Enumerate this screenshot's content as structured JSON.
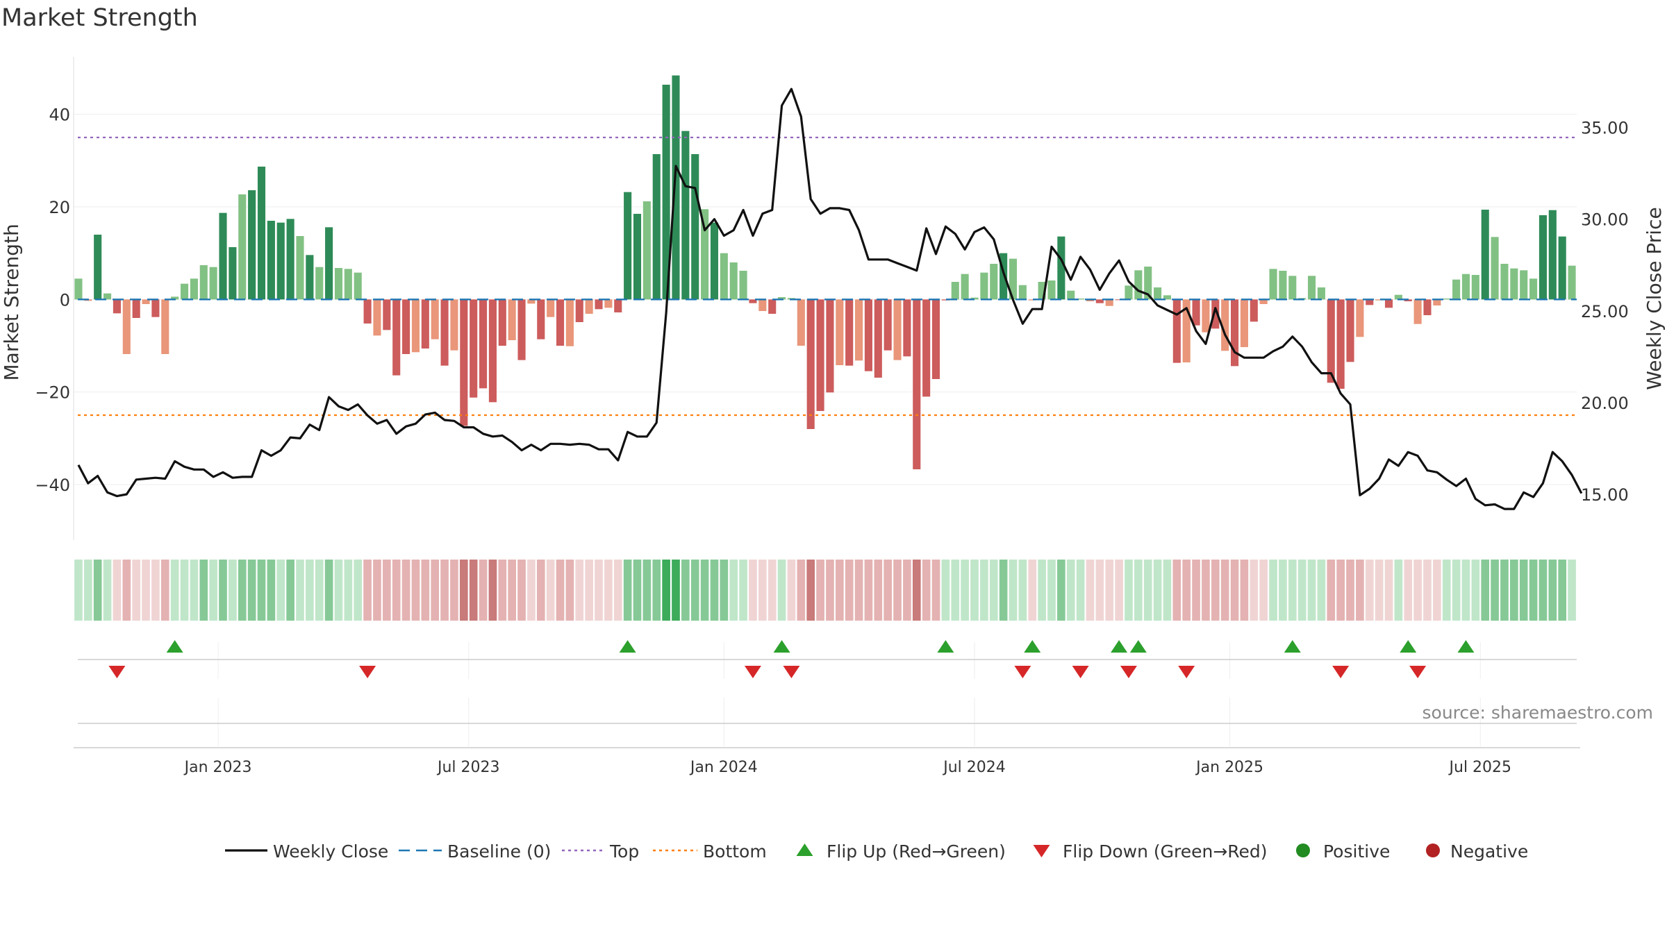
{
  "title": "Market Strength",
  "source": "source: sharemaestro.com",
  "chart_data": {
    "type": "bar",
    "ylabel": "Market Strength",
    "y2label": "Weekly Close Price",
    "ylim": [
      -52,
      53
    ],
    "y2lim": [
      12.5,
      39.0
    ],
    "yticks": [
      "40",
      "20",
      "0",
      "−20",
      "−40"
    ],
    "yticks_values": [
      40,
      20,
      0,
      -20,
      -40
    ],
    "y2ticks": [
      "35.00",
      "30.00",
      "25.00",
      "20.00",
      "15.00"
    ],
    "y2ticks_values": [
      35,
      30,
      25,
      20,
      15
    ],
    "xticks": [
      "Jan 2023",
      "Jul 2023",
      "Jan 2024",
      "Jul 2024",
      "Jan 2025",
      "Jul 2025"
    ],
    "xticks_index": [
      15,
      41,
      67.5,
      93.5,
      120,
      146
    ],
    "top_line": 35,
    "bottom_line": -25,
    "strength": [
      4.5,
      -0.3,
      14,
      1.3,
      -3,
      -11.8,
      -4,
      -1,
      -3.8,
      -11.8,
      0.6,
      3.4,
      4.5,
      7.4,
      7,
      18.7,
      11.3,
      22.7,
      23.6,
      28.7,
      17,
      16.6,
      17.4,
      13.7,
      9.6,
      7,
      15.6,
      6.8,
      6.6,
      5.8,
      -5.2,
      -7.8,
      -6.6,
      -16.4,
      -11.8,
      -11.4,
      -10.6,
      -8.6,
      -14.3,
      -11,
      -27.3,
      -21.2,
      -19.2,
      -22.2,
      -10,
      -8.8,
      -13.1,
      -0.9,
      -8.6,
      -3.8,
      -10,
      -10.1,
      -4.9,
      -3.1,
      -2.1,
      -1.8,
      -2.8,
      23.2,
      18.5,
      21.2,
      31.4,
      46.4,
      48.4,
      36.4,
      31.4,
      19.5,
      16.6,
      10,
      8,
      6.2,
      -0.8,
      -2.5,
      -3.1,
      0.5,
      0.3,
      -10,
      -28,
      -24.1,
      -20.1,
      -14.2,
      -14.3,
      -13.2,
      -15.5,
      -16.9,
      -11,
      -13.1,
      -12.3,
      -36.7,
      -21,
      -17.2,
      -0.2,
      3.8,
      5.5,
      0.4,
      5.8,
      7.7,
      10,
      8.8,
      3.1,
      -0.2,
      3.8,
      4.1,
      13.6,
      1.9,
      0.2,
      -0.4,
      -0.8,
      -1.4,
      -0.1,
      3,
      6.3,
      7.1,
      2.6,
      0.9,
      -13.7,
      -13.6,
      -5.6,
      -7.1,
      -6.3,
      -11.1,
      -14.4,
      -10.3,
      -4.8,
      -1,
      6.6,
      6.2,
      5.1,
      0.3,
      5.1,
      2.6,
      -18,
      -19.3,
      -13.5,
      -8.1,
      -1.2,
      -0.2,
      -1.8,
      1,
      -0.4,
      -5.3,
      -3.4,
      -1.3,
      0.2,
      4.3,
      5.5,
      5.3,
      19.4,
      13.5,
      7.7,
      6.7,
      6.3,
      4.5,
      18.2,
      19.3,
      13.6,
      7.3
    ],
    "close": [
      16.6,
      15.6,
      16,
      15.1,
      14.9,
      15,
      15.8,
      15.85,
      15.9,
      15.85,
      16.8,
      16.5,
      16.35,
      16.35,
      15.95,
      16.2,
      15.9,
      15.95,
      15.95,
      17.4,
      17.1,
      17.4,
      18.1,
      18.05,
      18.8,
      18.5,
      20.3,
      19.8,
      19.6,
      19.9,
      19.3,
      18.85,
      19.05,
      18.3,
      18.7,
      18.85,
      19.35,
      19.45,
      19.05,
      19,
      18.65,
      18.65,
      18.3,
      18.15,
      18.2,
      17.85,
      17.4,
      17.7,
      17.4,
      17.75,
      17.75,
      17.7,
      17.75,
      17.7,
      17.45,
      17.45,
      16.85,
      18.4,
      18.15,
      18.15,
      18.9,
      24.9,
      32.9,
      31.8,
      31.7,
      29.4,
      30,
      29.1,
      29.4,
      30.5,
      29.1,
      30.3,
      30.5,
      36.2,
      37.1,
      35.6,
      31.1,
      30.3,
      30.6,
      30.6,
      30.5,
      29.4,
      27.8,
      27.8,
      27.8,
      27.6,
      27.4,
      27.2,
      29.5,
      28.1,
      29.6,
      29.2,
      28.35,
      29.3,
      29.55,
      28.9,
      27.1,
      25.6,
      24.3,
      25.1,
      25.1,
      28.5,
      27.8,
      26.7,
      27.95,
      27.25,
      26.15,
      27.05,
      27.75,
      26.6,
      26.1,
      25.9,
      25.3,
      25.05,
      24.8,
      25.15,
      23.9,
      23.2,
      25.15,
      23.7,
      22.75,
      22.45,
      22.45,
      22.45,
      22.8,
      23.05,
      23.6,
      23.05,
      22.2,
      21.6,
      21.6,
      20.5,
      19.9,
      14.95,
      15.3,
      15.85,
      16.9,
      16.55,
      17.3,
      17.1,
      16.3,
      16.2,
      15.8,
      15.45,
      15.85,
      14.75,
      14.4,
      14.45,
      14.2,
      14.2,
      15.1,
      14.85,
      15.6,
      17.3,
      16.8,
      16.05,
      15.05
    ],
    "trend_strip": [
      "lg",
      "lg",
      "mg",
      "lg",
      "lr",
      "mr",
      "lr",
      "lr",
      "lr",
      "mr",
      "lg",
      "lg",
      "lg",
      "mg",
      "lg",
      "mg",
      "lg",
      "mg",
      "mg",
      "mg",
      "mg",
      "lg",
      "mg",
      "lg",
      "lg",
      "lg",
      "mg",
      "lg",
      "lg",
      "lg",
      "mr",
      "mr",
      "mr",
      "mr",
      "mr",
      "mr",
      "mr",
      "mr",
      "mr",
      "mr",
      "dr",
      "dr",
      "mr",
      "dr",
      "mr",
      "mr",
      "mr",
      "lr",
      "mr",
      "lr",
      "mr",
      "mr",
      "lr",
      "lr",
      "lr",
      "lr",
      "lr",
      "mg",
      "mg",
      "mg",
      "mg",
      "dg",
      "dg",
      "mg",
      "mg",
      "mg",
      "mg",
      "mg",
      "lg",
      "lg",
      "lr",
      "lr",
      "lr",
      "lg",
      "lr",
      "mr",
      "dr",
      "mr",
      "mr",
      "mr",
      "mr",
      "mr",
      "mr",
      "mr",
      "mr",
      "mr",
      "mr",
      "dr",
      "mr",
      "mr",
      "lg",
      "lg",
      "lg",
      "lg",
      "lg",
      "lg",
      "mg",
      "lg",
      "lg",
      "lr",
      "lg",
      "lg",
      "mg",
      "lg",
      "lg",
      "lr",
      "lr",
      "lr",
      "lr",
      "lg",
      "lg",
      "lg",
      "lg",
      "lg",
      "mr",
      "mr",
      "mr",
      "mr",
      "mr",
      "mr",
      "mr",
      "mr",
      "lr",
      "lr",
      "lg",
      "lg",
      "lg",
      "lg",
      "lg",
      "lg",
      "mr",
      "mr",
      "mr",
      "mr",
      "lr",
      "lr",
      "lr",
      "lg",
      "lr",
      "lr",
      "lr",
      "lr",
      "lg",
      "lg",
      "lg",
      "lg",
      "mg",
      "mg",
      "mg",
      "mg",
      "mg",
      "mg",
      "mg",
      "mg",
      "mg",
      "lg"
    ],
    "flip_up_index": [
      10,
      57,
      73,
      90,
      99,
      108,
      110,
      126,
      138,
      144
    ],
    "flip_down_index": [
      4,
      30,
      70,
      74,
      98,
      104,
      109,
      115,
      131,
      139
    ],
    "legend": [
      {
        "label": "Weekly Close",
        "symbol": "line",
        "color": "#111111"
      },
      {
        "label": "Baseline (0)",
        "symbol": "dash",
        "color": "#1f77b4"
      },
      {
        "label": "Top",
        "symbol": "dot",
        "color": "#9467bd"
      },
      {
        "label": "Bottom",
        "symbol": "dot",
        "color": "#ff7f0e"
      },
      {
        "label": "Flip Up (Red→Green)",
        "symbol": "tri-up",
        "color": "#2ca02c"
      },
      {
        "label": "Flip Down (Green→Red)",
        "symbol": "tri-down",
        "color": "#d62728"
      },
      {
        "label": "Positive",
        "symbol": "circle",
        "color": "#228b22"
      },
      {
        "label": "Negative",
        "symbol": "circle",
        "color": "#b22222"
      }
    ],
    "colors": {
      "bar_pos_strong": "#2e8b57",
      "bar_pos_weak": "#82c184",
      "bar_neg_strong": "#cd5c5c",
      "bar_neg_weak": "#e9967a",
      "close_line": "#111111",
      "baseline": "#1f77b4",
      "top": "#9467bd",
      "bottom": "#ff7f0e",
      "flip_up": "#2ca02c",
      "flip_down": "#d62728",
      "strip_dg": "#3cab5a",
      "strip_mg": "#86c997",
      "strip_lg": "#c0e6c9",
      "strip_lr": "#f0d4d4",
      "strip_mr": "#e4b2b2",
      "strip_dr": "#c97a7a"
    }
  }
}
